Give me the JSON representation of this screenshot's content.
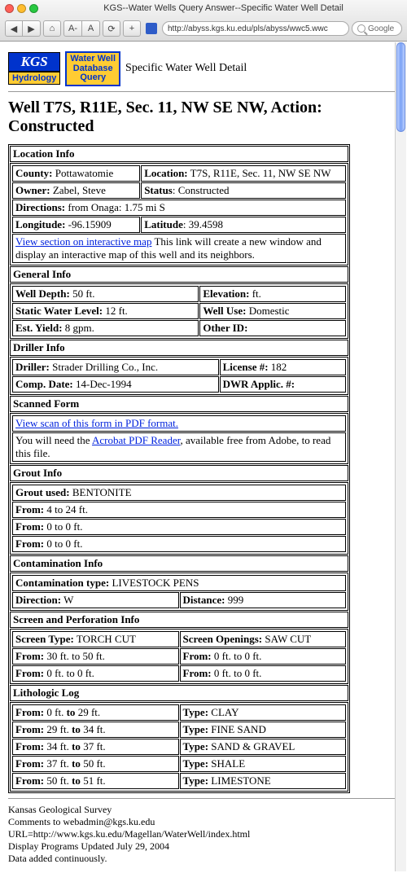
{
  "colors": {
    "traffic_red": "#ff5f57",
    "traffic_yellow": "#ffbd2e",
    "traffic_green": "#28c840",
    "kgs_blue": "#0033cc",
    "kgs_yellow": "#ffcc33"
  },
  "chrome": {
    "window_title": "KGS--Water Wells Query Answer--Specific Water Well Detail",
    "back": "◀",
    "forward": "▶",
    "home": "⌂",
    "font_minus": "A-",
    "font_plus": "A",
    "reload": "⟳",
    "add": "+",
    "url": "http://abyss.kgs.ku.edu/pls/abyss/wwc5.wwc",
    "search_placeholder": "Google"
  },
  "header": {
    "kgs": "KGS",
    "hydrology": "Hydrology",
    "wwdb_l1": "Water Well",
    "wwdb_l2": "Database",
    "wwdb_l3": "Query",
    "page_title": "Specific Water Well Detail"
  },
  "h1": "Well T7S, R11E, Sec. 11, NW SE NW, Action: Constructed",
  "location": {
    "title": "Location Info",
    "county_k": "County:",
    "county_v": "Pottawatomie",
    "loc_k": "Location:",
    "loc_v": "T7S, R11E, Sec. 11, NW SE NW",
    "owner_k": "Owner:",
    "owner_v": "Zabel, Steve",
    "status_k": "Status",
    "status_v": ": Constructed",
    "dir_k": "Directions:",
    "dir_v": "from Onaga: 1.75 mi S",
    "lon_k": "Longitude:",
    "lon_v": "-96.15909",
    "lat_k": "Latitude",
    "lat_v": ": 39.4598",
    "map_link": "View section on interactive map",
    "map_text": " This link will create a new window and display an interactive map of this well and its neighbors."
  },
  "general": {
    "title": "General Info",
    "depth_k": "Well Depth:",
    "depth_v": "50 ft.",
    "elev_k": "Elevation:",
    "elev_v": "ft.",
    "swl_k": "Static Water Level:",
    "swl_v": "12 ft.",
    "use_k": "Well Use:",
    "use_v": "Domestic",
    "yield_k": "Est. Yield:",
    "yield_v": "8 gpm.",
    "oid_k": "Other ID:"
  },
  "driller": {
    "title": "Driller Info",
    "drill_k": "Driller:",
    "drill_v": "Strader Drilling Co., Inc.",
    "lic_k": "License #:",
    "lic_v": "182",
    "cd_k": "Comp. Date:",
    "cd_v": "14-Dec-1994",
    "dwr_k": "DWR Applic. #:"
  },
  "scanned": {
    "title": "Scanned Form",
    "link": "View scan of this form in PDF format.",
    "need_pre": "You will need the ",
    "need_link": "Acrobat PDF Reader",
    "need_post": ", available free from Adobe, to read this file."
  },
  "grout": {
    "title": "Grout Info",
    "used_k": "Grout used:",
    "used_v": "BENTONITE",
    "r1_k": "From:",
    "r1_v": "4 to 24 ft.",
    "r2_k": "From:",
    "r2_v": "0 to 0 ft.",
    "r3_k": "From:",
    "r3_v": "0 to 0 ft."
  },
  "contam": {
    "title": "Contamination Info",
    "type_k": "Contamination type:",
    "type_v": "LIVESTOCK PENS",
    "dir_k": "Direction:",
    "dir_v": "W",
    "dist_k": "Distance:",
    "dist_v": "999"
  },
  "screen": {
    "title": "Screen and Perforation Info",
    "st_k": "Screen Type:",
    "st_v": "TORCH CUT",
    "so_k": "Screen Openings:",
    "so_v": "SAW CUT",
    "r1a_k": "From:",
    "r1a_v": "30 ft. to 50 ft.",
    "r1b_k": "From:",
    "r1b_v": "0 ft. to 0 ft.",
    "r2a_k": "From:",
    "r2a_v": "0 ft. to 0 ft.",
    "r2b_k": "From:",
    "r2b_v": "0 ft. to 0 ft."
  },
  "litho": {
    "title": "Lithologic Log",
    "from_k": "From:",
    "to_w": "to",
    "type_k": "Type:",
    "rows": [
      {
        "a": "0 ft.",
        "b": "29 ft.",
        "t": "CLAY"
      },
      {
        "a": "29 ft.",
        "b": "34 ft.",
        "t": "FINE SAND"
      },
      {
        "a": "34 ft.",
        "b": "37 ft.",
        "t": "SAND & GRAVEL"
      },
      {
        "a": "37 ft.",
        "b": "50 ft.",
        "t": "SHALE"
      },
      {
        "a": "50 ft.",
        "b": "51 ft.",
        "t": "LIMESTONE"
      }
    ]
  },
  "footer": {
    "l1": "Kansas Geological Survey",
    "l2": "Comments to webadmin@kgs.ku.edu",
    "l3": "URL=http://www.kgs.ku.edu/Magellan/WaterWell/index.html",
    "l4": "Display Programs Updated July 29, 2004",
    "l5": "Data added continuously."
  }
}
